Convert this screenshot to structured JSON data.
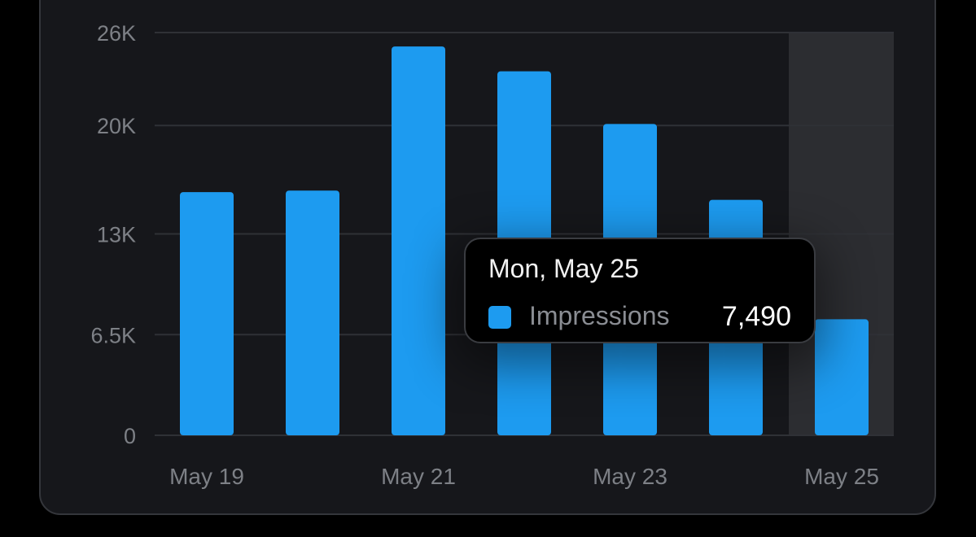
{
  "chart_data": {
    "type": "bar",
    "categories": [
      "May 19",
      "May 20",
      "May 21",
      "May 22",
      "May 23",
      "May 24",
      "May 25"
    ],
    "x_tick_labels": [
      "May 19",
      "May 21",
      "May 23",
      "May 25"
    ],
    "series": [
      {
        "name": "Impressions",
        "values": [
          15700,
          15800,
          25100,
          23500,
          20100,
          15200,
          7490
        ]
      }
    ],
    "y_ticks": [
      0,
      6500,
      13000,
      20000,
      26000
    ],
    "y_tick_labels": [
      "0",
      "6.5K",
      "13K",
      "20K",
      "26K"
    ],
    "ylim": [
      0,
      26000
    ],
    "grid": true,
    "highlighted_category": "May 25",
    "bar_color": "#1d9bf0",
    "highlight_band_color": "#2c2d31",
    "gridline_color": "#2f3136",
    "label_color": "#7d8086"
  },
  "tooltip": {
    "title": "Mon, May 25",
    "series_label": "Impressions",
    "value": "7,490",
    "swatch_color": "#1d9bf0"
  }
}
